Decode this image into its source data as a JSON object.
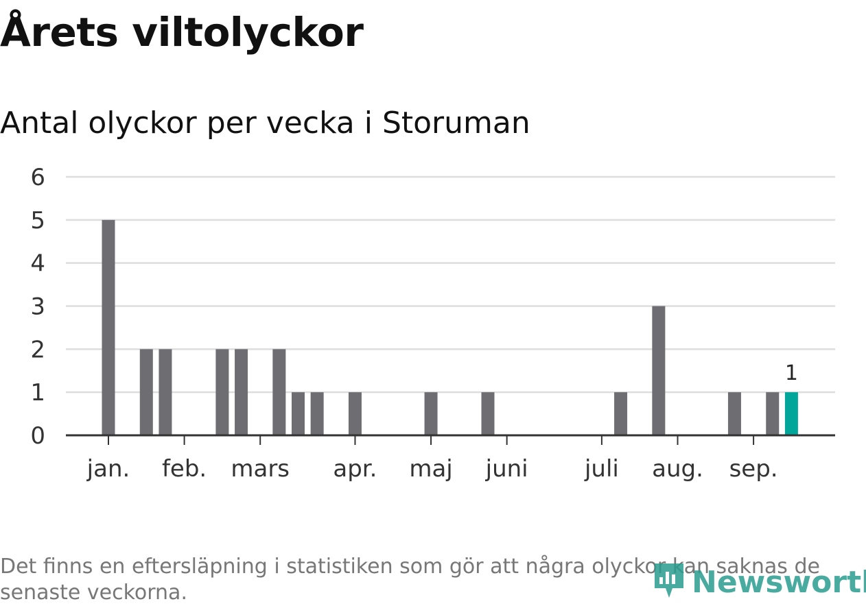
{
  "header": {
    "title": "Årets viltolyckor",
    "subtitle": "Antal olyckor per vecka i Storuman"
  },
  "footer": {
    "note": "Det finns en eftersläpning i statistiken som gör att några olyckor kan saknas de senaste veckorna.",
    "logo_text": "Newsworthy",
    "logo_icon": "newsworthy-logo-icon"
  },
  "colors": {
    "bar": "#6e6d72",
    "highlight": "#00a699",
    "grid": "#dddddd",
    "axis": "#333333",
    "logo": "#2a9d8f"
  },
  "chart_data": {
    "type": "bar",
    "title": "Antal olyckor per vecka i Storuman",
    "xlabel": "",
    "ylabel": "",
    "ylim": [
      0,
      6
    ],
    "yticks": [
      0,
      1,
      2,
      3,
      4,
      5,
      6
    ],
    "grid": true,
    "x_unit": "week",
    "x": [
      2,
      3,
      4,
      5,
      6,
      7,
      8,
      9,
      10,
      11,
      12,
      13,
      14,
      15,
      16,
      17,
      18,
      19,
      20,
      21,
      22,
      23,
      24,
      25,
      26,
      27,
      28,
      29,
      30,
      31,
      32,
      33,
      34,
      35,
      36,
      37,
      38
    ],
    "values": [
      5,
      0,
      2,
      2,
      0,
      0,
      2,
      2,
      0,
      2,
      1,
      1,
      0,
      1,
      0,
      0,
      0,
      1,
      0,
      0,
      1,
      0,
      0,
      0,
      0,
      0,
      0,
      1,
      0,
      3,
      0,
      0,
      0,
      1,
      0,
      1,
      1
    ],
    "highlight_index": 36,
    "data_labels": [
      {
        "index": 36,
        "text": "1"
      }
    ],
    "month_ticks": [
      {
        "label": "jan.",
        "week": 2
      },
      {
        "label": "feb.",
        "week": 6
      },
      {
        "label": "mars",
        "week": 10
      },
      {
        "label": "apr.",
        "week": 15
      },
      {
        "label": "maj",
        "week": 19
      },
      {
        "label": "juni",
        "week": 23
      },
      {
        "label": "juli",
        "week": 28
      },
      {
        "label": "aug.",
        "week": 32
      },
      {
        "label": "sep.",
        "week": 36
      }
    ]
  }
}
